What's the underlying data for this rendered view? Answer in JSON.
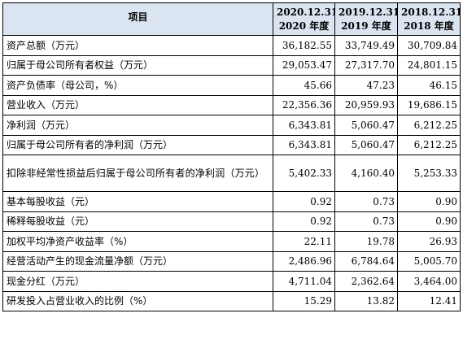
{
  "table": {
    "headers": {
      "item": "项目",
      "cols": [
        {
          "line1": "2020.12.31/",
          "line2": "2020 年度"
        },
        {
          "line1": "2019.12.31/",
          "line2": "2019 年度"
        },
        {
          "line1": "2018.12.31/",
          "line2": "2018 年度"
        }
      ]
    },
    "rows": [
      {
        "label": "资产总额（万元）",
        "values": [
          "36,182.55",
          "33,749.49",
          "30,709.84"
        ]
      },
      {
        "label": "归属于母公司所有者权益（万元）",
        "values": [
          "29,053.47",
          "27,317.70",
          "24,801.15"
        ]
      },
      {
        "label": "资产负债率（母公司，%）",
        "values": [
          "45.66",
          "47.23",
          "46.15"
        ]
      },
      {
        "label": "营业收入（万元）",
        "values": [
          "22,356.36",
          "20,959.93",
          "19,686.15"
        ]
      },
      {
        "label": "净利润（万元）",
        "values": [
          "6,343.81",
          "5,060.47",
          "6,212.25"
        ]
      },
      {
        "label": "归属于母公司所有者的净利润（万元）",
        "values": [
          "6,343.81",
          "5,060.47",
          "6,212.25"
        ]
      },
      {
        "label": "扣除非经常性损益后归属于母公司所有者的净利润（万元）",
        "values": [
          "5,402.33",
          "4,160.40",
          "5,253.33"
        ]
      },
      {
        "label": "基本每股收益（元）",
        "values": [
          "0.92",
          "0.73",
          "0.90"
        ]
      },
      {
        "label": "稀释每股收益（元）",
        "values": [
          "0.92",
          "0.73",
          "0.90"
        ]
      },
      {
        "label": "加权平均净资产收益率（%）",
        "values": [
          "22.11",
          "19.78",
          "26.93"
        ]
      },
      {
        "label": "经营活动产生的现金流量净额（万元）",
        "values": [
          "2,486.96",
          "6,784.64",
          "5,005.70"
        ]
      },
      {
        "label": "现金分红（万元）",
        "values": [
          "4,711.04",
          "2,362.64",
          "3,464.00"
        ]
      },
      {
        "label": "研发投入占营业收入的比例（%）",
        "values": [
          "15.29",
          "13.82",
          "12.41"
        ]
      }
    ]
  }
}
